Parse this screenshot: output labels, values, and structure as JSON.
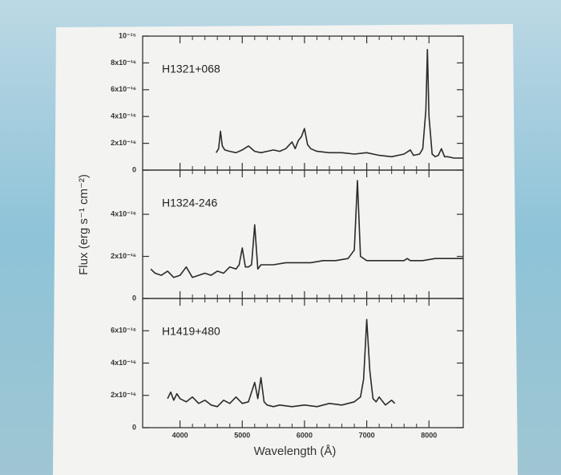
{
  "chart_data": [
    {
      "type": "line",
      "label": "H1321+068",
      "xlim": [
        3400,
        8550
      ],
      "ylim": [
        0,
        1e-15
      ],
      "yticks": [
        0,
        {
          "value": 2e-16,
          "label": "2x10⁻¹⁶"
        },
        {
          "value": 4e-16,
          "label": "4x10⁻¹⁶"
        },
        {
          "value": 6e-16,
          "label": "6x10⁻¹⁶"
        },
        {
          "value": 8e-16,
          "label": "8x10⁻¹⁶"
        },
        {
          "value": 1e-15,
          "label": "10⁻¹⁵"
        }
      ],
      "color": "#2b2b2b",
      "x": [
        4580,
        4620,
        4650,
        4680,
        4720,
        4800,
        4900,
        5000,
        5100,
        5200,
        5300,
        5400,
        5500,
        5600,
        5700,
        5800,
        5850,
        5900,
        5950,
        6000,
        6050,
        6100,
        6200,
        6400,
        6600,
        6800,
        7000,
        7200,
        7400,
        7600,
        7700,
        7750,
        7850,
        7900,
        7950,
        7975,
        8000,
        8050,
        8100,
        8150,
        8200,
        8250,
        8300,
        8400,
        8550
      ],
      "values": [
        1.3e-16,
        1.6e-16,
        2.9e-16,
        1.8e-16,
        1.5e-16,
        1.4e-16,
        1.3e-16,
        1.5e-16,
        1.8e-16,
        1.4e-16,
        1.3e-16,
        1.4e-16,
        1.5e-16,
        1.4e-16,
        1.6e-16,
        2.1e-16,
        1.6e-16,
        2.2e-16,
        2.5e-16,
        3.1e-16,
        1.9e-16,
        1.6e-16,
        1.4e-16,
        1.3e-16,
        1.3e-16,
        1.2e-16,
        1.3e-16,
        1.1e-16,
        1e-16,
        1.2e-16,
        1.5e-16,
        1.1e-16,
        1.2e-16,
        1.6e-16,
        4.5e-16,
        9e-16,
        4e-16,
        1.2e-16,
        1e-16,
        1.1e-16,
        1.6e-16,
        1e-16,
        1e-16,
        9e-17,
        9e-17
      ]
    },
    {
      "type": "line",
      "label": "H1324-246",
      "ylabel": "Flux (erg s⁻¹ cm⁻²)",
      "xlim": [
        3400,
        8550
      ],
      "ylim": [
        0,
        6.1e-16
      ],
      "yticks": [
        0,
        {
          "value": 2e-16,
          "label": "2x10⁻¹⁶"
        },
        {
          "value": 4e-16,
          "label": "4x10⁻¹⁶"
        }
      ],
      "color": "#2b2b2b",
      "x": [
        3530,
        3600,
        3700,
        3800,
        3900,
        4000,
        4100,
        4200,
        4300,
        4400,
        4500,
        4600,
        4700,
        4800,
        4900,
        4950,
        5000,
        5050,
        5100,
        5150,
        5200,
        5250,
        5300,
        5500,
        5700,
        5900,
        6100,
        6300,
        6500,
        6700,
        6800,
        6850,
        6900,
        7000,
        7200,
        7400,
        7600,
        7650,
        7700,
        7900,
        8100,
        8300,
        8550
      ],
      "values": [
        1.4e-16,
        1.2e-16,
        1.1e-16,
        1.3e-16,
        1e-16,
        1.1e-16,
        1.5e-16,
        1e-16,
        1.1e-16,
        1.2e-16,
        1.1e-16,
        1.3e-16,
        1.2e-16,
        1.5e-16,
        1.4e-16,
        1.6e-16,
        2.4e-16,
        1.5e-16,
        1.5e-16,
        1.6e-16,
        3.5e-16,
        1.4e-16,
        1.6e-16,
        1.6e-16,
        1.7e-16,
        1.7e-16,
        1.7e-16,
        1.8e-16,
        1.8e-16,
        1.9e-16,
        2.3e-16,
        5.6e-16,
        2e-16,
        1.8e-16,
        1.8e-16,
        1.8e-16,
        1.8e-16,
        1.9e-16,
        1.8e-16,
        1.8e-16,
        1.9e-16,
        1.9e-16,
        1.9e-16
      ]
    },
    {
      "type": "line",
      "label": "H1419+480",
      "xlabel": "Wavelength (Å)",
      "xlim": [
        3400,
        8550
      ],
      "ylim": [
        0,
        8e-16
      ],
      "xticks": [
        4000,
        5000,
        6000,
        7000,
        8000
      ],
      "yticks": [
        0,
        {
          "value": 2e-16,
          "label": "2x10⁻¹⁶"
        },
        {
          "value": 4e-16,
          "label": "4x10⁻¹⁶"
        },
        {
          "value": 6e-16,
          "label": "6x10⁻¹⁶"
        }
      ],
      "color": "#2b2b2b",
      "x": [
        3800,
        3850,
        3900,
        3950,
        4000,
        4100,
        4200,
        4300,
        4400,
        4500,
        4600,
        4700,
        4800,
        4900,
        5000,
        5100,
        5200,
        5250,
        5300,
        5350,
        5400,
        5500,
        5600,
        5800,
        6000,
        6200,
        6400,
        6600,
        6800,
        6900,
        6950,
        7000,
        7050,
        7100,
        7150,
        7200,
        7300,
        7400,
        7450
      ],
      "values": [
        1.8e-16,
        2.2e-16,
        1.7e-16,
        2.1e-16,
        1.8e-16,
        1.6e-16,
        1.9e-16,
        1.5e-16,
        1.7e-16,
        1.4e-16,
        1.3e-16,
        1.7e-16,
        1.5e-16,
        1.9e-16,
        1.5e-16,
        1.6e-16,
        2.8e-16,
        1.8e-16,
        3.1e-16,
        1.6e-16,
        1.4e-16,
        1.3e-16,
        1.4e-16,
        1.3e-16,
        1.4e-16,
        1.3e-16,
        1.5e-16,
        1.4e-16,
        1.6e-16,
        1.9e-16,
        3e-16,
        6.7e-16,
        3.5e-16,
        1.8e-16,
        1.6e-16,
        1.9e-16,
        1.4e-16,
        1.7e-16,
        1.5e-16
      ]
    }
  ]
}
